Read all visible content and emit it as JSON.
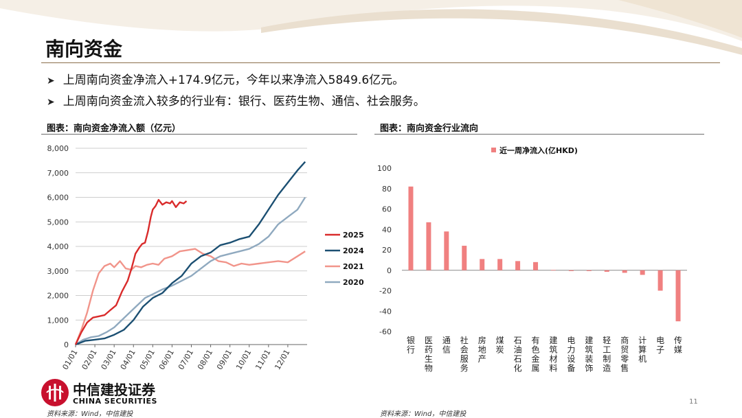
{
  "title": "南向资金",
  "bullets": [
    "上周南向资金净流入+174.9亿元，今年以来净流入5849.6亿元。",
    "上周南向资金流入较多的行业有：银行、医药生物、通信、社会服务。"
  ],
  "left_chart_title": "图表：南向资金净流入额（亿元）",
  "right_chart_title": "图表：南向资金行业流向",
  "source_left": "资料来源：Wind，中信建投",
  "source_right": "资料来源：Wind，中信建投",
  "page_number": "11",
  "logo": {
    "cn": "中信建投证券",
    "en": "CHINA SECURITIES"
  },
  "colors": {
    "accent_line": "#8a6d4a",
    "y2025": "#d92b2b",
    "y2024": "#1b4f72",
    "y2021": "#f1948a",
    "y2020": "#8fa9bf",
    "bar": "#f08080"
  },
  "chart_data": [
    {
      "type": "line",
      "title": "图表：南向资金净流入额（亿元）",
      "x_ticks": [
        "01/01",
        "02/01",
        "03/01",
        "04/01",
        "05/01",
        "06/01",
        "07/01",
        "08/01",
        "09/01",
        "10/01",
        "11/01",
        "12/01"
      ],
      "y_ticks": [
        "8,000",
        "7,000",
        "6,000",
        "5,000",
        "4,000",
        "3,000",
        "2,000",
        "1,000",
        "0"
      ],
      "ylim": [
        0,
        8000
      ],
      "grid": true,
      "legend": "right",
      "series": [
        {
          "name": "2025",
          "color": "#d92b2b",
          "x": [
            0,
            0.3,
            0.6,
            0.9,
            1.2,
            1.5,
            1.8,
            2.1,
            2.4,
            2.7,
            2.9,
            3.0,
            3.1,
            3.3,
            3.45,
            3.6,
            3.75,
            3.9,
            4.0,
            4.15,
            4.3,
            4.5,
            4.7,
            4.9,
            5.0,
            5.2,
            5.4,
            5.6,
            5.75
          ],
          "y": [
            0,
            500,
            900,
            1100,
            1150,
            1200,
            1400,
            1600,
            2150,
            2600,
            3100,
            3400,
            3700,
            3950,
            4100,
            4150,
            4600,
            5200,
            5500,
            5650,
            5900,
            5700,
            5800,
            5750,
            5850,
            5600,
            5800,
            5750,
            5850
          ]
        },
        {
          "name": "2024",
          "color": "#1b4f72",
          "x": [
            0,
            0.5,
            1.0,
            1.5,
            2.0,
            2.5,
            3.0,
            3.5,
            4.0,
            4.5,
            5.0,
            5.5,
            6.0,
            6.5,
            7.0,
            7.5,
            8.0,
            8.5,
            9.0,
            9.5,
            10.0,
            10.5,
            11.0,
            11.5,
            11.9
          ],
          "y": [
            0,
            150,
            200,
            250,
            400,
            600,
            1000,
            1550,
            1900,
            2100,
            2500,
            2800,
            3300,
            3600,
            3750,
            4050,
            4150,
            4300,
            4400,
            4900,
            5500,
            6100,
            6600,
            7100,
            7450
          ]
        },
        {
          "name": "2021",
          "color": "#f1948a",
          "x": [
            0,
            0.3,
            0.6,
            0.9,
            1.2,
            1.5,
            1.8,
            2.0,
            2.3,
            2.6,
            2.9,
            3.1,
            3.4,
            3.7,
            4.0,
            4.3,
            4.6,
            5.0,
            5.4,
            5.8,
            6.2,
            6.6,
            7.0,
            7.4,
            7.8,
            8.2,
            8.6,
            9.0,
            9.5,
            10.0,
            10.5,
            11.0,
            11.5,
            11.9
          ],
          "y": [
            0,
            600,
            1300,
            2200,
            2900,
            3200,
            3300,
            3150,
            3400,
            3100,
            3050,
            3200,
            3150,
            3250,
            3300,
            3250,
            3500,
            3600,
            3800,
            3850,
            3900,
            3700,
            3600,
            3400,
            3350,
            3200,
            3300,
            3250,
            3300,
            3350,
            3400,
            3350,
            3600,
            3800
          ]
        },
        {
          "name": "2020",
          "color": "#8fa9bf",
          "x": [
            0,
            0.4,
            0.8,
            1.2,
            1.6,
            2.0,
            2.4,
            2.8,
            3.2,
            3.6,
            4.0,
            4.5,
            5.0,
            5.5,
            6.0,
            6.5,
            7.0,
            7.5,
            8.0,
            8.5,
            9.0,
            9.5,
            10.0,
            10.5,
            11.0,
            11.5,
            11.9
          ],
          "y": [
            0,
            200,
            300,
            350,
            500,
            700,
            1000,
            1300,
            1600,
            1900,
            2050,
            2250,
            2400,
            2600,
            2800,
            3100,
            3400,
            3600,
            3700,
            3800,
            3900,
            4100,
            4400,
            4900,
            5200,
            5500,
            6000
          ]
        }
      ]
    },
    {
      "type": "bar",
      "title": "图表：南向资金行业流向",
      "legend": "近一周净流入(亿HKD)",
      "legend_position": "top",
      "ylim": [
        -60,
        100
      ],
      "y_ticks": [
        "100",
        "80",
        "60",
        "40",
        "20",
        "0",
        "-20",
        "-40",
        "-60"
      ],
      "grid": false,
      "categories": [
        "银行",
        "医药生物",
        "通信",
        "社会服务",
        "房地产",
        "煤炭",
        "石油石化",
        "有色金属",
        "建筑材料",
        "电力设备",
        "建筑装饰",
        "轻工制造",
        "商贸零售",
        "计算机",
        "电子",
        "传媒"
      ],
      "series": [
        {
          "name": "近一周净流入(亿HKD)",
          "values": [
            82,
            47,
            38,
            24,
            11,
            11,
            9,
            8,
            0.3,
            -0.8,
            -0.8,
            -1.5,
            -2.5,
            -4.5,
            -20,
            -50
          ]
        }
      ]
    }
  ]
}
